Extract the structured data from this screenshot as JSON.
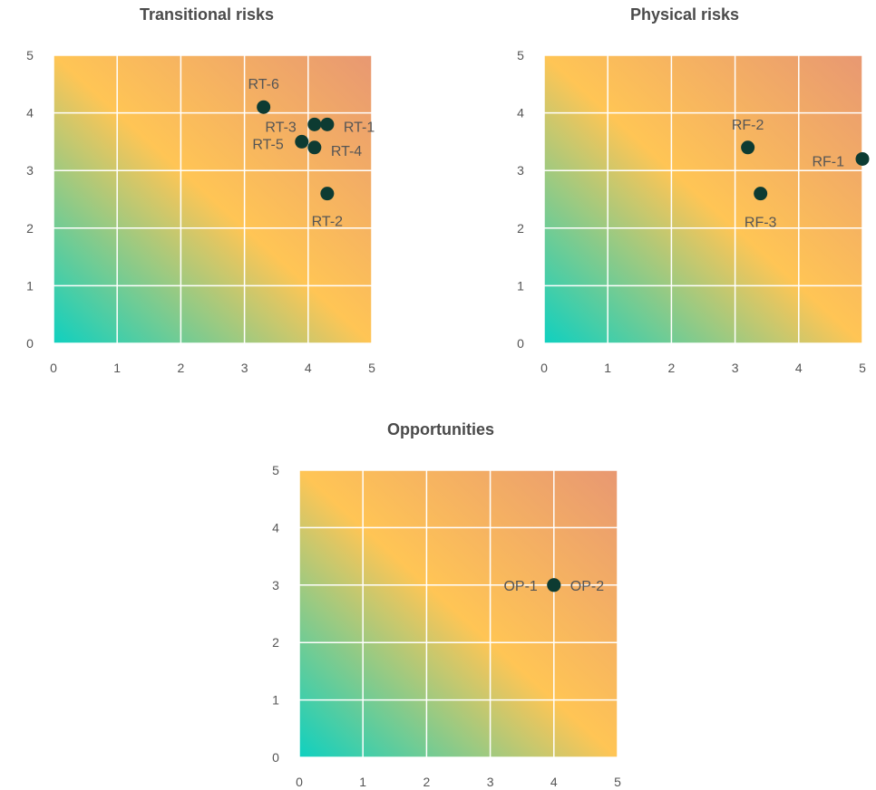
{
  "chart_data": [
    {
      "type": "scatter",
      "title": "Transitional risks",
      "xlim": [
        0,
        5
      ],
      "ylim": [
        0,
        5
      ],
      "x_ticks": [
        "0",
        "1",
        "2",
        "3",
        "4",
        "5"
      ],
      "y_ticks": [
        "0",
        "1",
        "2",
        "3",
        "4",
        "5"
      ],
      "grid": true,
      "background": "diagonal gradient teal (bottom-left) to yellow to salmon (top-right)",
      "points": [
        {
          "label": "RT-6",
          "x": 3.3,
          "y": 4.1
        },
        {
          "label": "RT-3",
          "x": 4.1,
          "y": 3.8
        },
        {
          "label": "RT-1",
          "x": 4.3,
          "y": 3.8
        },
        {
          "label": "RT-5",
          "x": 3.9,
          "y": 3.5
        },
        {
          "label": "RT-4",
          "x": 4.1,
          "y": 3.4
        },
        {
          "label": "RT-2",
          "x": 4.3,
          "y": 2.6
        }
      ]
    },
    {
      "type": "scatter",
      "title": "Physical risks",
      "xlim": [
        0,
        5
      ],
      "ylim": [
        0,
        5
      ],
      "x_ticks": [
        "0",
        "1",
        "2",
        "3",
        "4",
        "5"
      ],
      "y_ticks": [
        "0",
        "1",
        "2",
        "3",
        "4",
        "5"
      ],
      "grid": true,
      "background": "diagonal gradient teal (bottom-left) to yellow to salmon (top-right)",
      "points": [
        {
          "label": "RF-2",
          "x": 3.2,
          "y": 3.4
        },
        {
          "label": "RF-1",
          "x": 5.0,
          "y": 3.2
        },
        {
          "label": "RF-3",
          "x": 3.4,
          "y": 2.6
        }
      ]
    },
    {
      "type": "scatter",
      "title": "Opportunities",
      "xlim": [
        0,
        5
      ],
      "ylim": [
        0,
        5
      ],
      "x_ticks": [
        "0",
        "1",
        "2",
        "3",
        "4",
        "5"
      ],
      "y_ticks": [
        "0",
        "1",
        "2",
        "3",
        "4",
        "5"
      ],
      "grid": true,
      "background": "diagonal gradient teal (bottom-left) to yellow to salmon (top-right)",
      "points": [
        {
          "label": "OP-1",
          "x": 4.0,
          "y": 3.0
        },
        {
          "label": "OP-2",
          "x": 4.0,
          "y": 3.0
        }
      ]
    }
  ],
  "colors": {
    "gradient_low": "#0fd0c0",
    "gradient_mid": "#ffc555",
    "gradient_high": "#e89872",
    "point": "#0d3b32",
    "grid": "#ffffff",
    "text": "#555555",
    "title": "#4a4a4a"
  }
}
